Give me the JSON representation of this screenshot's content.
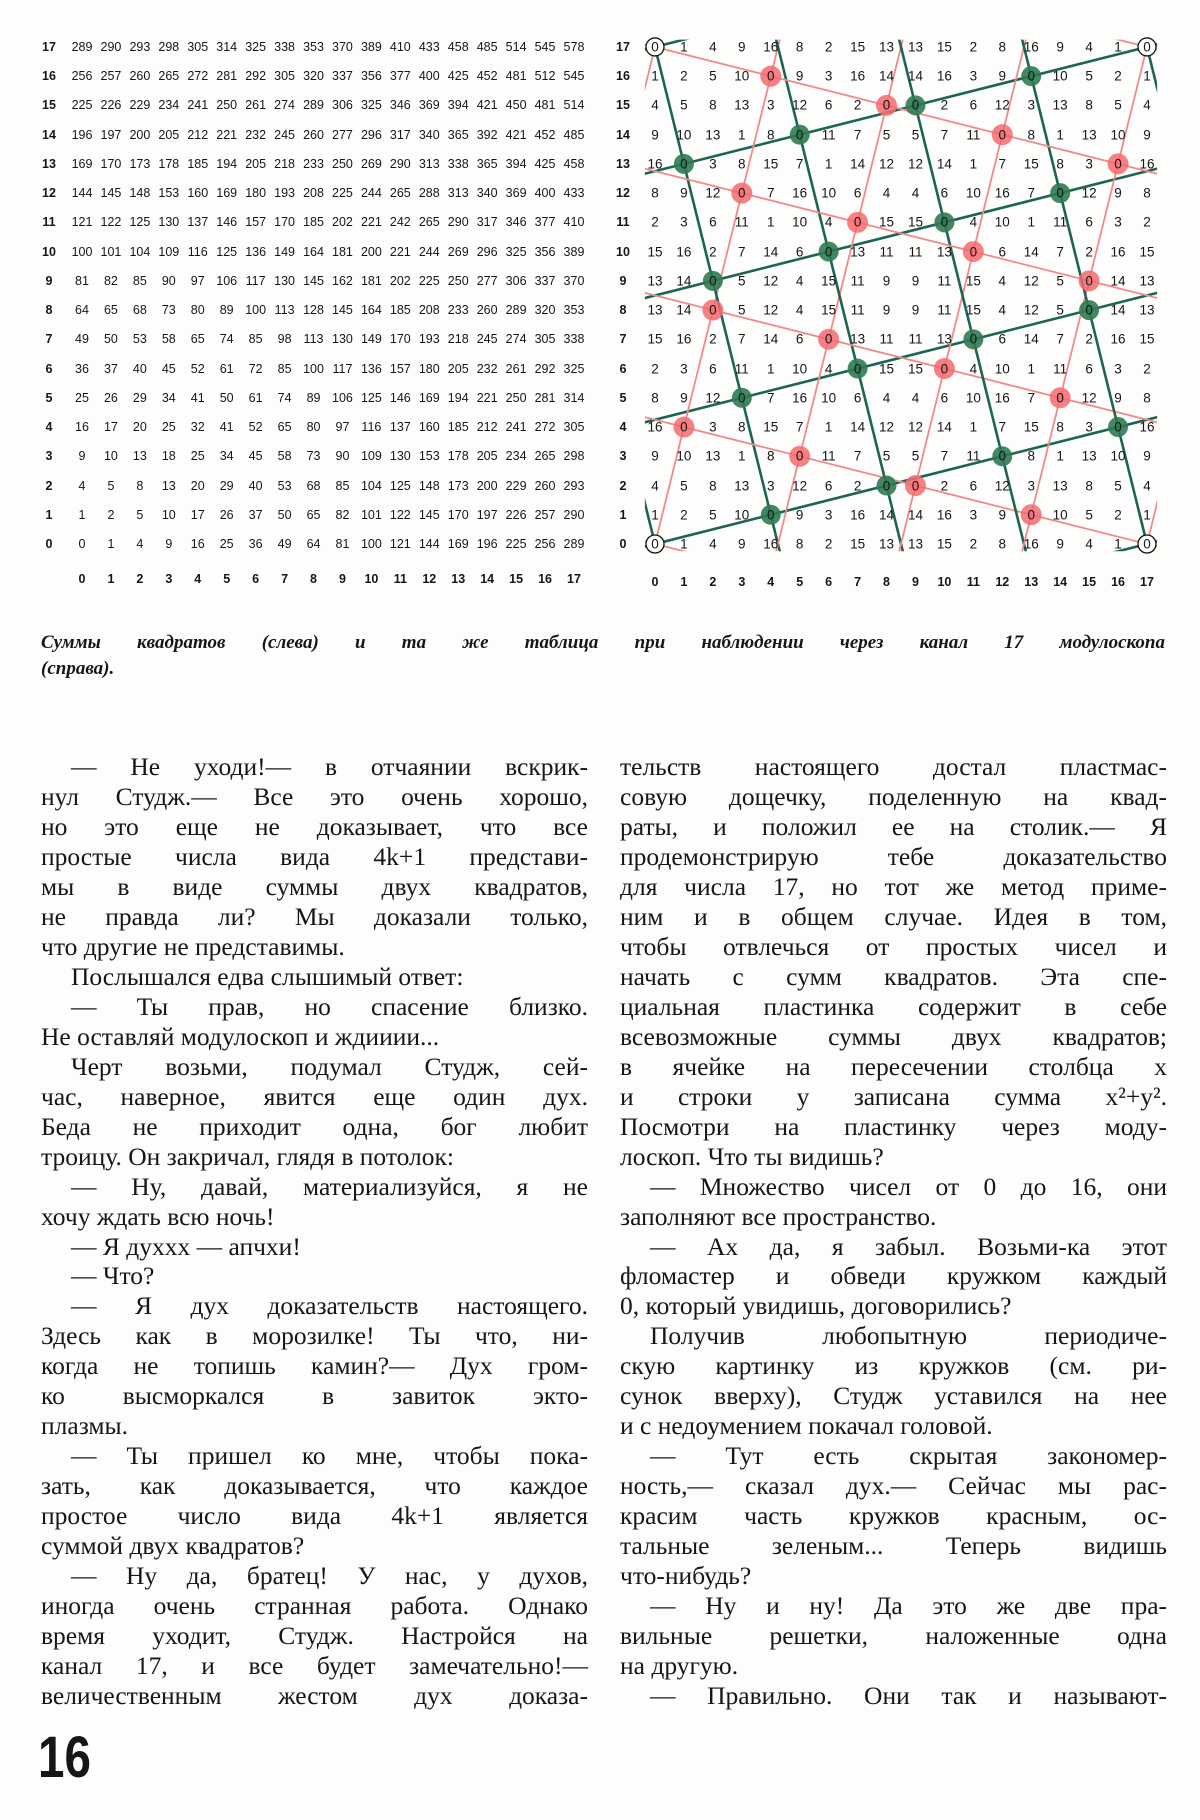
{
  "left_table": {
    "row_labels": [
      "0",
      "1",
      "2",
      "3",
      "4",
      "5",
      "6",
      "7",
      "8",
      "9",
      "10",
      "11",
      "12",
      "13",
      "14",
      "15",
      "16",
      "17"
    ],
    "col_labels": [
      "0",
      "1",
      "2",
      "3",
      "4",
      "5",
      "6",
      "7",
      "8",
      "9",
      "10",
      "11",
      "12",
      "13",
      "14",
      "15",
      "16",
      "17"
    ],
    "rows": [
      "0 1 4 9 16 25 36 49 64 81 100 121 144 169 196 225 256 289",
      "1 2 5 10 17 26 37 50 65 82 101 122 145 170 197 226 257 290",
      "4 5 8 13 20 29 40 53 68 85 104 125 148 173 200 229 260 293",
      "9 10 13 18 25 34 45 58 73 90 109 130 153 178 205 234 265 298",
      "16 17 20 25 32 41 52 65 80 97 116 137 160 185 212 241 272 305",
      "25 26 29 34 41 50 61 74 89 106 125 146 169 194 221 250 281 314",
      "36 37 40 45 52 61 72 85 100 117 136 157 180 205 232 261 292 325",
      "49 50 53 58 65 74 85 98 113 130 149 170 193 218 245 274 305 338",
      "64 65 68 73 80 89 100 113 128 145 164 185 208 233 260 289 320 353",
      "81 82 85 90 97 106 117 130 145 162 181 202 225 250 277 306 337 370",
      "100 101 104 109 116 125 136 149 164 181 200 221 244 269 296 325 356 389",
      "121 122 125 130 137 146 157 170 185 202 221 242 265 290 317 346 377 410",
      "144 145 148 153 160 169 180 193 208 225 244 265 288 313 340 369 400 433",
      "169 170 173 178 185 194 205 218 233 250 269 290 313 338 365 394 425 458",
      "196 197 200 205 212 221 232 245 260 277 296 317 340 365 392 421 452 485",
      "225 226 229 234 241 250 261 274 289 306 325 346 369 394 421 450 481 514",
      "256 257 260 265 272 281 292 305 320 337 356 377 400 425 452 481 512 545",
      "289 290 293 298 305 314 325 338 353 370 389 410 433 458 485 514 545 578"
    ]
  },
  "right_table": {
    "row_labels": [
      "0",
      "1",
      "2",
      "3",
      "4",
      "5",
      "6",
      "7",
      "8",
      "9",
      "10",
      "11",
      "12",
      "13",
      "14",
      "15",
      "16",
      "17"
    ],
    "col_labels": [
      "0",
      "1",
      "2",
      "3",
      "4",
      "5",
      "6",
      "7",
      "8",
      "9",
      "10",
      "11",
      "12",
      "13",
      "14",
      "15",
      "16",
      "17"
    ],
    "modulus": 17,
    "rows": [
      "0 1 4 9 16 8 2 15 13 13 15 2 8 16 9 4 1 0",
      "1 2 5 10 0 9 3 16 14 14 16 3 9 0 10 5 2 1",
      "4 5 8 13 3 12 6 2 0 0 2 6 12 3 13 8 5 4",
      "9 10 13 1 8 0 11 7 5 5 7 11 0 8 1 13 10 9",
      "16 0 3 8 15 7 1 14 12 12 14 1 7 15 8 3 0 16",
      "8 9 12 0 7 16 10 6 4 4 6 10 16 7 0 12 9 8",
      "2 3 6 11 1 10 4 0 15 15 0 4 10 1 11 6 3 2",
      "15 16 2 7 14 6 0 13 11 11 13 0 6 14 7 2 16 15",
      "13 14 0 5 12 4 15 11 9 9 11 15 4 12 5 0 14 13",
      "13 14 0 5 12 4 15 11 9 9 11 15 4 12 5 0 14 13",
      "15 16 2 7 14 6 0 13 11 11 13 0 6 14 7 2 16 15",
      "2 3 6 11 1 10 4 0 15 15 0 4 10 1 11 6 3 2",
      "8 9 12 0 7 16 10 6 4 4 6 10 16 7 0 12 9 8",
      "16 0 3 8 15 7 1 14 12 12 14 1 7 15 8 3 0 16",
      "9 10 13 1 8 0 11 7 5 5 7 11 0 8 1 13 10 9",
      "4 5 8 13 3 12 6 2 0 0 2 6 12 3 13 8 5 4",
      "1 2 5 10 0 9 3 16 14 14 16 3 9 0 10 5 2 1",
      "0 1 4 9 16 8 2 15 13 13 15 2 8 16 9 4 1 0"
    ],
    "colors": {
      "green_circle": "#2f7a52",
      "green_line": "#1d6455",
      "red_circle": "#f46a6e",
      "red_line": "#ef8a8a",
      "corner_circle": "#111111"
    }
  },
  "caption": {
    "lines": [
      "Суммы квадратов (слева) и та же таблица при наблюдении через канал 17 модулоскопа",
      "(справа)."
    ]
  },
  "columns": [
    {
      "paragraphs": [
        {
          "lines": [
            "— Не уходи!— в отчаянии вскрик-",
            "нул Студж.— Все это очень хорошо,",
            "но это еще не доказывает, что все",
            "простые числа вида 4k+1 представи-",
            "мы в виде суммы двух квадратов,",
            "не правда ли? Мы доказали только,",
            "что другие не представимы."
          ]
        },
        {
          "lines": [
            "Послышался едва слышимый ответ:"
          ]
        },
        {
          "lines": [
            "— Ты прав, но спасение близко.",
            "Не оставляй модулоскоп и ждииии..."
          ]
        },
        {
          "lines": [
            "Черт возьми, подумал Студж, сей-",
            "час, наверное, явится еще один дух.",
            "Беда не приходит одна, бог любит",
            "троицу. Он закричал, глядя в потолок:"
          ]
        },
        {
          "lines": [
            "— Ну, давай, материализуйся, я не",
            "хочу ждать всю ночь!"
          ]
        },
        {
          "lines": [
            "— Я духхх — апчхи!"
          ]
        },
        {
          "lines": [
            "— Что?"
          ]
        },
        {
          "lines": [
            "— Я дух доказательств настоящего.",
            "Здесь как в морозилке! Ты что, ни-",
            "когда не топишь камин?— Дух гром-",
            "ко высморкался в завиток экто-",
            "плазмы."
          ]
        },
        {
          "lines": [
            "— Ты пришел ко мне, чтобы пока-",
            "зать, как доказывается, что каждое",
            "простое число вида 4k+1 является",
            "суммой двух квадратов?"
          ]
        },
        {
          "lines": [
            "— Ну да, братец! У нас, у духов,",
            "иногда очень странная работа. Однако",
            "время уходит, Студж. Настройся на",
            "канал 17, и все будет замечательно!—",
            "величественным жестом дух доказа-"
          ],
          "continues": true
        }
      ]
    },
    {
      "paragraphs": [
        {
          "lines": [
            "тельств настоящего достал пластмас-",
            "совую дощечку, поделенную на квад-",
            "раты, и положил ее на столик.— Я",
            "продемонстрирую тебе доказательство",
            "для числа 17, но тот же метод приме-",
            "ним и в общем случае. Идея в том,",
            "чтобы отвлечься от простых чисел и",
            "начать с сумм квадратов. Эта спе-",
            "циальная пластинка содержит в себе",
            "всевозможные суммы двух квадратов;",
            "в ячейке на пересечении столбца x",
            "и строки y записана сумма x²+y².",
            "Посмотри на пластинку через моду-",
            "лоскоп. Что ты видишь?"
          ],
          "continued": true
        },
        {
          "lines": [
            "— Множество чисел от 0 до 16, они",
            "заполняют все пространство."
          ]
        },
        {
          "lines": [
            "— Ах да, я забыл. Возьми-ка этот",
            "фломастер и обведи кружком каждый",
            "0, который увидишь, договорились?"
          ]
        },
        {
          "lines": [
            "Получив любопытную периодиче-",
            "скую картинку из кружков (см. ри-",
            "сунок вверху), Студж уставился на нее",
            "и с недоумением покачал головой."
          ]
        },
        {
          "lines": [
            "— Тут есть скрытая закономер-",
            "ность,— сказал дух.— Сейчас мы рас-",
            "красим часть кружков красным, ос-",
            "тальные зеленым... Теперь видишь",
            "что-нибудь?"
          ]
        },
        {
          "lines": [
            "— Ну и ну! Да это же две пра-",
            "вильные решетки, наложенные одна",
            "на другую."
          ]
        },
        {
          "lines": [
            "— Правильно. Они так и называют-"
          ],
          "continues": true
        }
      ]
    }
  ],
  "page_number": "16"
}
